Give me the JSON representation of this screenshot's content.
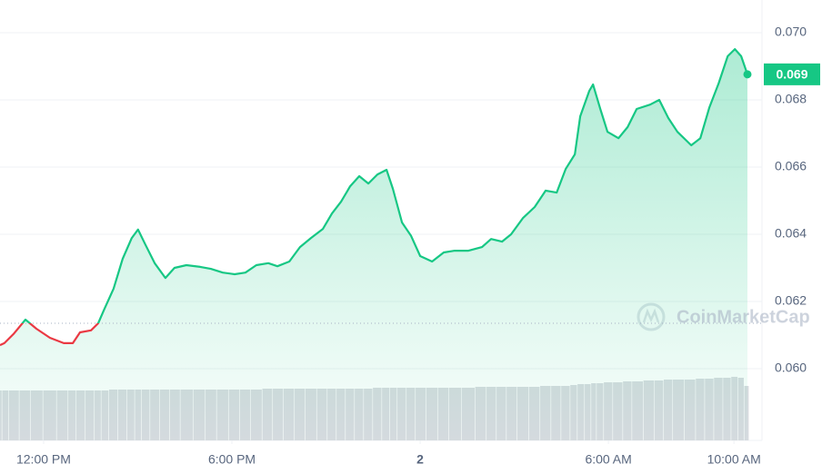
{
  "chart_data": {
    "type": "line",
    "x": [
      -1.39,
      -1.25,
      -0.96,
      -0.58,
      -0.23,
      0.2,
      0.64,
      0.93,
      1.16,
      1.51,
      1.74,
      1.94,
      2.23,
      2.52,
      2.81,
      3.01,
      3.25,
      3.54,
      3.88,
      4.17,
      4.55,
      4.99,
      5.33,
      5.71,
      6.09,
      6.43,
      6.78,
      7.16,
      7.45,
      7.83,
      8.17,
      8.52,
      8.9,
      9.19,
      9.48,
      9.77,
      10.06,
      10.35,
      10.64,
      10.93,
      11.13,
      11.42,
      11.71,
      12.0,
      12.38,
      12.75,
      13.1,
      13.54,
      13.97,
      14.26,
      14.61,
      14.9,
      15.28,
      15.65,
      16.0,
      16.35,
      16.64,
      16.93,
      17.1,
      17.39,
      17.51,
      17.74,
      17.97,
      18.32,
      18.61,
      18.9,
      19.33,
      19.62,
      19.91,
      20.2,
      20.64,
      20.93,
      21.22,
      21.51,
      21.8,
      22.03,
      22.23,
      22.43
    ],
    "series": [
      {
        "color": "#16c784",
        "values": [
          0.0607,
          0.06076,
          0.06103,
          0.06146,
          0.06119,
          0.06092,
          0.06076,
          0.06076,
          0.06108,
          0.06114,
          0.06135,
          0.06178,
          0.06238,
          0.06327,
          0.06389,
          0.06414,
          0.06368,
          0.06314,
          0.0627,
          0.063,
          0.06308,
          0.06303,
          0.06297,
          0.06286,
          0.06281,
          0.06286,
          0.06308,
          0.06314,
          0.06305,
          0.06319,
          0.06362,
          0.06389,
          0.06416,
          0.06462,
          0.06497,
          0.06543,
          0.06573,
          0.06551,
          0.06578,
          0.06592,
          0.06535,
          0.06435,
          0.06395,
          0.06335,
          0.06319,
          0.06346,
          0.06351,
          0.06351,
          0.06362,
          0.06386,
          0.06378,
          0.064,
          0.06449,
          0.06481,
          0.0653,
          0.06524,
          0.06595,
          0.06638,
          0.06751,
          0.06827,
          0.06846,
          0.06773,
          0.06705,
          0.06686,
          0.06719,
          0.06773,
          0.06786,
          0.068,
          0.06746,
          0.06705,
          0.06665,
          0.06686,
          0.06778,
          0.06849,
          0.0693,
          0.06951,
          0.0693,
          0.06876
        ]
      }
    ],
    "below_color": "#ea3943",
    "baseline": 0.06135,
    "volume": {
      "color": "#d8dbe0",
      "vlim": [
        0,
        100
      ],
      "values": [
        55,
        55,
        55,
        55,
        55,
        55,
        55,
        55,
        55,
        55,
        55,
        55,
        56,
        56,
        56,
        56,
        56,
        56,
        56,
        56,
        56,
        56,
        56,
        56,
        56,
        56,
        56,
        57,
        57,
        57,
        57,
        57,
        57,
        57,
        57,
        57,
        57,
        57,
        58,
        58,
        58,
        58,
        58,
        58,
        58,
        58,
        58,
        58,
        59,
        59,
        59,
        59,
        59,
        59,
        60,
        60,
        60,
        61,
        62,
        62,
        63,
        63,
        64,
        64,
        65,
        65,
        66,
        66,
        67,
        67,
        67,
        68,
        68,
        69,
        69,
        70,
        69,
        60
      ]
    },
    "xlim": [
      -1.39,
      22.43
    ],
    "xticks": [
      {
        "value": 0,
        "label": "12:00 PM"
      },
      {
        "value": 6,
        "label": "6:00 PM"
      },
      {
        "value": 12,
        "label": "2"
      },
      {
        "value": 18,
        "label": "6:00 AM"
      },
      {
        "value": 22,
        "label": "10:00 AM"
      }
    ],
    "ylim": [
      0.06,
      0.07
    ],
    "yticks": [
      {
        "value": 0.06,
        "label": "0.060"
      },
      0.062,
      0.064,
      0.066,
      0.068,
      {
        "value": 0.07,
        "label": "0.070"
      }
    ],
    "grid": true,
    "price_label": "0.069",
    "watermark": "CoinMarketCap"
  }
}
